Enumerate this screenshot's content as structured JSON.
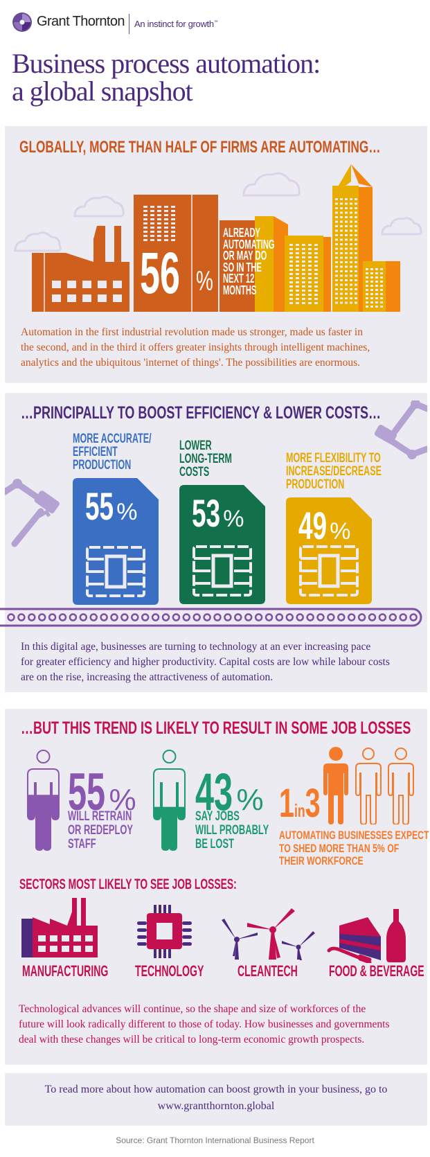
{
  "colors": {
    "purple": "#4b2a7f",
    "orange": "#c9571f",
    "blue": "#3a6fc4",
    "green": "#12704a",
    "yellow": "#e6a900",
    "crimson": "#c4104e",
    "panel": "#ecebf1",
    "person_purple": "#8a57b0",
    "person_green": "#1e9a70",
    "person_orange": "#f47a2c"
  },
  "header": {
    "brand": "Grant Thornton",
    "tagline": "An instinct for growth",
    "tagline_mark": "™",
    "logo_icon": "grant-thornton-swirl"
  },
  "title": {
    "line1": "Business process automation:",
    "line2": "a global snapshot"
  },
  "section1": {
    "heading": "GLOBALLY, MORE THAN HALF OF FIRMS ARE AUTOMATING…",
    "stat_value": "56",
    "stat_unit": "%",
    "stat_label_lines": [
      "ALREADY",
      "AUTOMATING",
      "OR MAY DO",
      "SO IN THE",
      "NEXT 12",
      "MONTHS"
    ],
    "paragraph_lines": [
      "Automation in the first industrial revolution made us stronger, made us faster in",
      "the second, and in the third it offers greater insights through intelligent machines,",
      "analytics and the ubiquitous 'internet of things'. The possibilities are enormous."
    ]
  },
  "section2": {
    "heading": "…PRINCIPALLY TO BOOST EFFICIENCY & LOWER COSTS…",
    "cards": [
      {
        "label_lines": [
          "MORE ACCURATE/",
          "EFFICIENT",
          "PRODUCTION"
        ],
        "value": "55",
        "unit": "%",
        "color": "#3a6fc4"
      },
      {
        "label_lines": [
          "LOWER",
          "LONG-TERM",
          "COSTS"
        ],
        "value": "53",
        "unit": "%",
        "color": "#12704a"
      },
      {
        "label_lines": [
          "MORE FLEXIBILITY TO",
          "INCREASE/DECREASE",
          "PRODUCTION"
        ],
        "value": "49",
        "unit": "%",
        "color": "#e6a900"
      }
    ],
    "paragraph_lines": [
      "In this digital age, businesses are turning to technology at an ever increasing pace",
      "for greater efficiency and higher productivity. Capital costs are low while labour costs",
      "are on the rise, increasing the attractiveness of automation."
    ]
  },
  "section3": {
    "heading": "…BUT THIS TREND IS LIKELY TO RESULT IN SOME JOB LOSSES",
    "stats": [
      {
        "value": "55",
        "unit": "%",
        "percent": 55,
        "label_lines": [
          "WILL RETRAIN",
          "OR REDEPLOY",
          "STAFF"
        ],
        "color": "#8a57b0"
      },
      {
        "value": "43",
        "unit": "%",
        "percent": 43,
        "label_lines": [
          "SAY JOBS",
          "WILL PROBABLY",
          "BE LOST"
        ],
        "color": "#1e9a70"
      }
    ],
    "ratio": {
      "num": "1",
      "mid": "in",
      "den": "3",
      "label_lines": [
        "AUTOMATING BUSINESSES EXPECT",
        "TO SHED MORE THAN 5% OF",
        "THEIR WORKFORCE"
      ],
      "color": "#f47a2c"
    },
    "sectors_heading": "SECTORS MOST LIKELY TO SEE JOB LOSSES:",
    "sectors": [
      {
        "label": "MANUFACTURING",
        "icon": "factory"
      },
      {
        "label": "TECHNOLOGY",
        "icon": "microchip"
      },
      {
        "label": "CLEANTECH",
        "icon": "wind-turbines"
      },
      {
        "label": "FOOD & BEVERAGE",
        "icon": "cake-and-bottle"
      }
    ],
    "paragraph_lines": [
      "Technological advances will continue, so the shape and size of workforces of the",
      "future will look radically different to those of today. How businesses and governments",
      "deal with these changes will be critical to long-term economic growth prospects."
    ]
  },
  "footer": {
    "cta": "To read more about how automation can boost growth in your business, go to",
    "link": "www.grantthornton.global",
    "source": "Source: Grant Thornton International Business Report"
  }
}
